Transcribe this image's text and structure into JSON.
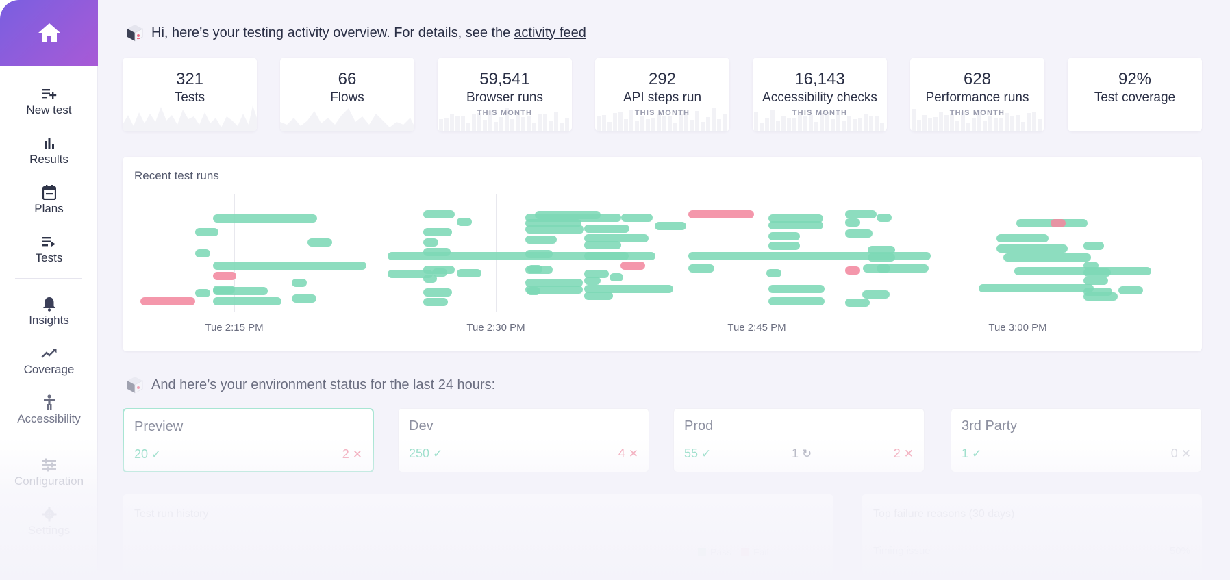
{
  "sidebar": {
    "home_icon": "home-icon",
    "items": [
      {
        "label": "New test",
        "icon": "new-test-icon"
      },
      {
        "label": "Results",
        "icon": "bar-chart-icon"
      },
      {
        "label": "Plans",
        "icon": "calendar-icon"
      },
      {
        "label": "Tests",
        "icon": "tests-list-icon"
      },
      {
        "label": "Insights",
        "icon": "bell-icon"
      },
      {
        "label": "Coverage",
        "icon": "trend-icon"
      },
      {
        "label": "Accessibility",
        "icon": "accessibility-icon"
      },
      {
        "label": "Configuration",
        "icon": "sliders-icon"
      },
      {
        "label": "Settings",
        "icon": "gear-icon"
      }
    ]
  },
  "header": {
    "greeting": "Hi, here’s your testing activity overview. For details, see the",
    "link": "activity feed"
  },
  "stats": [
    {
      "value": "321",
      "label": "Tests",
      "sub": ""
    },
    {
      "value": "66",
      "label": "Flows",
      "sub": ""
    },
    {
      "value": "59,541",
      "label": "Browser runs",
      "sub": "THIS MONTH"
    },
    {
      "value": "292",
      "label": "API steps run",
      "sub": "THIS MONTH"
    },
    {
      "value": "16,143",
      "label": "Accessibility checks",
      "sub": "THIS MONTH"
    },
    {
      "value": "628",
      "label": "Performance runs",
      "sub": "THIS MONTH"
    },
    {
      "value": "92%",
      "label": "Test coverage",
      "sub": ""
    }
  ],
  "recent_runs": {
    "title": "Recent test runs",
    "time_labels": [
      "Tue 2:15 PM",
      "Tue 2:30 PM",
      "Tue 2:45 PM",
      "Tue 3:00 PM"
    ],
    "colors": {
      "pass": "#7dd8b6",
      "fail": "#f2899f"
    }
  },
  "env_header": "And here’s your environment status for the last 24 hours:",
  "environments": [
    {
      "name": "Preview",
      "pass": "20",
      "pending": "",
      "fail": "2"
    },
    {
      "name": "Dev",
      "pass": "250",
      "pending": "",
      "fail": "4"
    },
    {
      "name": "Prod",
      "pass": "55",
      "pending": "1",
      "fail": "2"
    },
    {
      "name": "3rd Party",
      "pass": "1",
      "pending": "",
      "fail": "0"
    }
  ],
  "bottom": {
    "history_title": "Test run history",
    "failure_title": "Top failure reasons (30 days)",
    "legend_pass": "Pass",
    "legend_fail": "Fail",
    "failure_item": "Timing issue",
    "failure_pct": "50%"
  }
}
